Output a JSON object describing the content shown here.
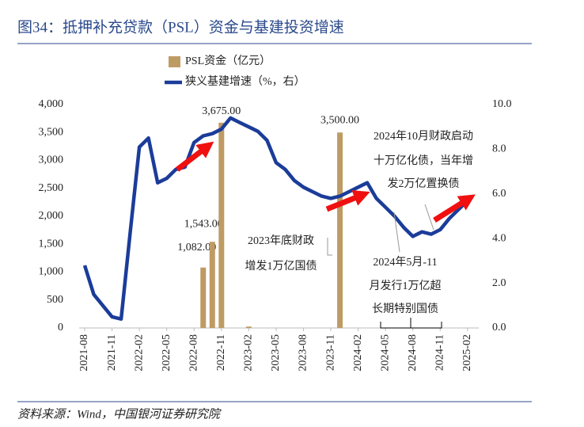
{
  "chart_data": {
    "type": "combo",
    "title": "图34：抵押补充贷款（PSL）资金与基建投资增速",
    "source": "资料来源：Wind，中国银河证券研究院",
    "categories": [
      "2021-08",
      null,
      null,
      "2021-11",
      null,
      null,
      "2022-02",
      null,
      null,
      "2022-05",
      null,
      null,
      "2022-08",
      null,
      null,
      "2022-11",
      null,
      null,
      "2023-02",
      null,
      null,
      "2023-05",
      null,
      null,
      "2023-08",
      null,
      null,
      "2023-11",
      null,
      null,
      "2024-02",
      null,
      null,
      "2024-05",
      null,
      null,
      "2024-08",
      null,
      null,
      "2024-11",
      null,
      null,
      "2025-02"
    ],
    "series": [
      {
        "name": "PSL资金（亿元）",
        "type": "bar",
        "color": "#bf9b64",
        "values": [
          null,
          null,
          null,
          null,
          null,
          null,
          null,
          null,
          null,
          null,
          null,
          null,
          null,
          1082,
          1543,
          3675,
          null,
          null,
          25,
          null,
          null,
          null,
          null,
          null,
          null,
          null,
          null,
          null,
          3500,
          null,
          null,
          null,
          null,
          null,
          null,
          null,
          null,
          null,
          null,
          null,
          null,
          null,
          null
        ],
        "value_labels": [
          null,
          null,
          null,
          null,
          null,
          null,
          null,
          null,
          null,
          null,
          null,
          null,
          null,
          "1,082.00",
          "1,543.00",
          "3,675.00",
          null,
          null,
          null,
          null,
          null,
          null,
          null,
          null,
          null,
          null,
          null,
          null,
          "3,500.00",
          null,
          null,
          null,
          null,
          null,
          null,
          null,
          null,
          null,
          null,
          null,
          null,
          null,
          null
        ]
      },
      {
        "name": "狭义基建增速（%，右）",
        "type": "line",
        "axis": "y2",
        "color": "#1b3c99",
        "values": [
          2.8,
          1.5,
          1.0,
          0.5,
          0.4,
          4.3,
          8.1,
          8.5,
          6.5,
          6.7,
          7.1,
          7.2,
          8.3,
          8.6,
          8.7,
          8.9,
          9.4,
          9.2,
          9.0,
          8.8,
          8.4,
          7.4,
          7.1,
          6.6,
          6.3,
          6.1,
          5.9,
          5.8,
          5.9,
          6.1,
          6.3,
          6.5,
          5.8,
          5.4,
          5.0,
          4.5,
          4.1,
          4.3,
          4.2,
          4.4,
          4.9,
          5.3,
          5.7
        ]
      }
    ],
    "ylim": [
      0,
      4000
    ],
    "yticks": [
      0,
      500,
      {
        "value": 1000,
        "label": "1,000"
      },
      {
        "value": 1500,
        "label": "1,500"
      },
      {
        "value": 2000,
        "label": "2,000"
      },
      {
        "value": 2500,
        "label": "2,500"
      },
      {
        "value": 3000,
        "label": "3,000"
      },
      {
        "value": 3500,
        "label": "3,500"
      },
      {
        "value": 4000,
        "label": "4,000"
      }
    ],
    "y2lim": [
      0,
      10
    ],
    "y2ticks": [
      {
        "value": 0,
        "label": "0.0"
      },
      {
        "value": 2,
        "label": "2.0"
      },
      {
        "value": 4,
        "label": "4.0"
      },
      {
        "value": 6,
        "label": "6.0"
      },
      {
        "value": 8,
        "label": "8.0"
      },
      {
        "value": 10,
        "label": "10.0"
      }
    ],
    "legend": "top",
    "annotations": [
      {
        "lines": [
          "2024年10月财政启动",
          "十万亿化债，当年增",
          "发2万亿置换债"
        ]
      },
      {
        "lines": [
          "2023年底财政",
          "增发1万亿国债"
        ]
      },
      {
        "lines": [
          "2024年5月-11",
          "月发行1万亿超",
          "长期特别国债"
        ]
      }
    ]
  }
}
